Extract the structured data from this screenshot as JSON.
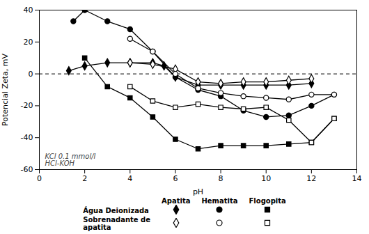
{
  "chart_data": {
    "type": "line",
    "xlabel": "pH",
    "ylabel": "Potencial Zeta, mV",
    "xlim": [
      0,
      14
    ],
    "ylim": [
      -60,
      40
    ],
    "xticks": [
      0,
      2,
      4,
      6,
      8,
      10,
      12,
      14
    ],
    "yticks": [
      -60,
      -40,
      -20,
      0,
      20,
      40
    ],
    "annotation": "KCl 0.1 mmol/l\nHCl-KOH",
    "legend": "bottom",
    "legend_groups": [
      "Água Deionizada",
      "Sobrenadante de\napatita"
    ],
    "hline": {
      "value": 0,
      "line_style": "dashed"
    },
    "series": [
      {
        "name": "Apatita",
        "group": "Água Deionizada",
        "color": "black",
        "marker": "diamond",
        "line_style": "solid",
        "x": [
          1.3,
          2.0,
          3.0,
          4.0,
          5.0,
          5.5,
          6.0,
          7.0,
          8.0,
          9.0,
          10.0,
          11.0,
          12.0
        ],
        "values": [
          2,
          5,
          7,
          7,
          7,
          5,
          -2,
          -7,
          -7,
          -7,
          -7,
          -7,
          -6
        ]
      },
      {
        "name": "Hematita",
        "group": "Água Deionizada",
        "color": "black",
        "marker": "circle",
        "line_style": "solid",
        "x": [
          1.5,
          2.0,
          3.0,
          4.0,
          5.0,
          6.0,
          7.0,
          8.0,
          9.0,
          10.0,
          11.0,
          12.0,
          13.0
        ],
        "values": [
          33,
          40,
          33,
          28,
          14,
          -2,
          -10,
          -14,
          -23,
          -27,
          -26,
          -20,
          -13
        ]
      },
      {
        "name": "Flogopita",
        "group": "Água Deionizada",
        "color": "black",
        "marker": "square",
        "line_style": "solid",
        "x": [
          2.0,
          3.0,
          4.0,
          5.0,
          6.0,
          7.0,
          8.0,
          9.0,
          10.0,
          11.0,
          12.0,
          13.0
        ],
        "values": [
          10,
          -8,
          -15,
          -27,
          -41,
          -47,
          -45,
          -45,
          -45,
          -44,
          -43,
          -28
        ]
      },
      {
        "name": "Apatita",
        "group": "Sobrenadante de\napatita",
        "color": "black",
        "marker": "diamond_open",
        "line_style": "solid",
        "x": [
          4.0,
          5.0,
          6.0,
          7.0,
          8.0,
          9.0,
          10.0,
          11.0,
          12.0
        ],
        "values": [
          7,
          6,
          3,
          -5,
          -6,
          -5,
          -5,
          -4,
          -3
        ]
      },
      {
        "name": "Hematita",
        "group": "Sobrenadante de\napatita",
        "color": "black",
        "marker": "circle_open",
        "line_style": "solid",
        "x": [
          4.0,
          5.0,
          6.0,
          7.0,
          8.0,
          9.0,
          10.0,
          11.0,
          12.0,
          13.0
        ],
        "values": [
          22,
          14,
          0,
          -9,
          -12,
          -14,
          -15,
          -16,
          -13,
          -13
        ]
      },
      {
        "name": "Flogopita",
        "group": "Sobrenadante de\napatita",
        "color": "black",
        "marker": "square_open",
        "line_style": "solid",
        "x": [
          4.0,
          5.0,
          6.0,
          7.0,
          8.0,
          9.0,
          10.0,
          11.0,
          12.0,
          13.0
        ],
        "values": [
          -8,
          -17,
          -21,
          -19,
          -21,
          -22,
          -21,
          -29,
          -43,
          -28
        ]
      }
    ]
  }
}
